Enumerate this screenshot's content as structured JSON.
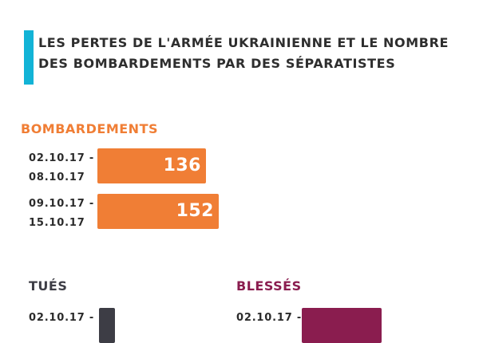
{
  "title": {
    "line1": "LES PERTES DE L'ARMÉE UKRAINIENNE ET LE NOMBRE",
    "line2": "DES BOMBARDEMENTS PAR DES SÉPARATISTES"
  },
  "colors": {
    "accent": "#12b3d6",
    "bombardements": "#f07e35",
    "tues": "#3d3d45",
    "blesses": "#8a1d4f",
    "text": "#2b2b2b"
  },
  "chart_data": [
    {
      "type": "bar",
      "title": "BOMBARDEMENTS",
      "categories": [
        [
          "02.10.17 -",
          "08.10.17"
        ],
        [
          "09.10.17 -",
          "15.10.17"
        ]
      ],
      "values": [
        136,
        152
      ],
      "xlim": [
        0,
        152
      ]
    },
    {
      "type": "bar",
      "title": "TUÉS",
      "categories": [
        [
          "02.10.17 -",
          ""
        ]
      ],
      "values": [
        1
      ],
      "xlim": [
        0,
        10
      ]
    },
    {
      "type": "bar",
      "title": "BLESSÉS",
      "categories": [
        [
          "02.10.17 -",
          ""
        ]
      ],
      "values": [
        null
      ],
      "xlim": [
        0,
        10
      ]
    }
  ]
}
